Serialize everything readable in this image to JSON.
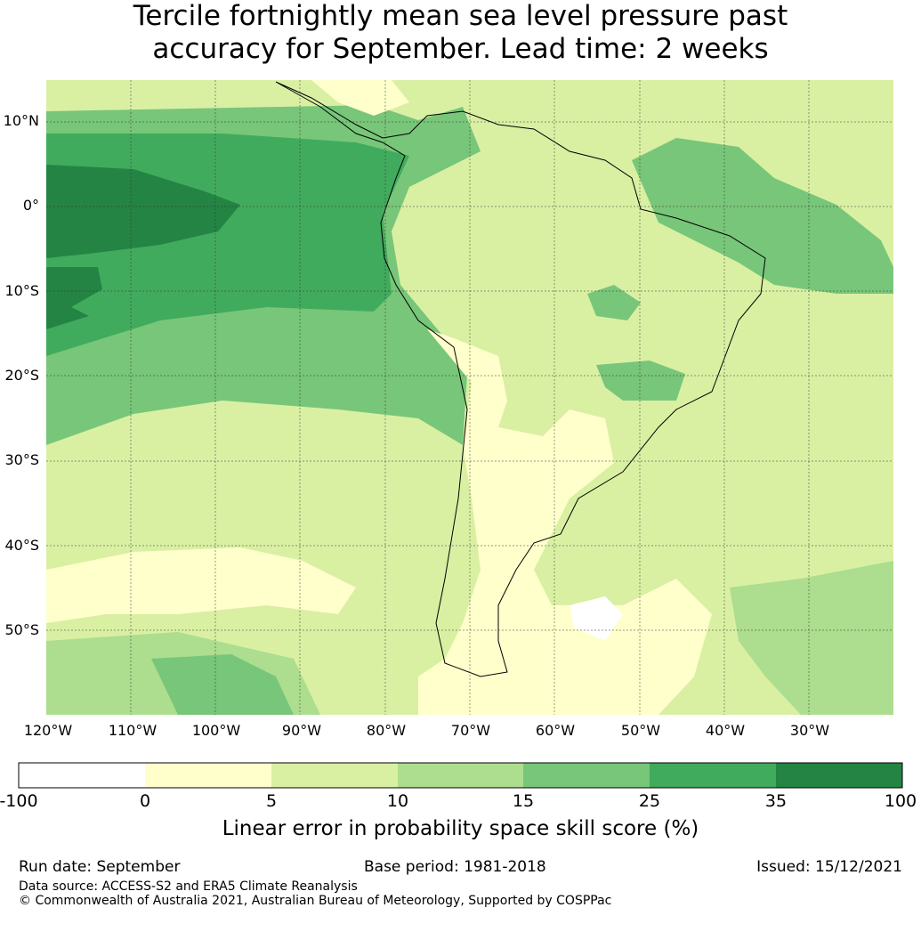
{
  "title": {
    "line1": "Tercile fortnightly mean sea level pressure past",
    "line2": "accuracy for September. Lead time: 2 weeks"
  },
  "map": {
    "lat_labels": [
      "10°N",
      "0°",
      "10°S",
      "20°S",
      "30°S",
      "40°S",
      "50°S"
    ],
    "lon_labels": [
      "120°W",
      "110°W",
      "100°W",
      "90°W",
      "80°W",
      "70°W",
      "60°W",
      "50°W",
      "40°W",
      "30°W"
    ]
  },
  "colorbar": {
    "ticks": [
      "-100",
      "0",
      "5",
      "10",
      "15",
      "25",
      "35",
      "100"
    ],
    "colors": [
      "#ffffff",
      "#ffffcc",
      "#d9f0a3",
      "#addd8e",
      "#78c679",
      "#41ab5d",
      "#238443"
    ],
    "label": "Linear error in probability space skill score (%)"
  },
  "footer": {
    "run_date": "Run date: September",
    "base_period": "Base period: 1981-2018",
    "issued": "Issued: 15/12/2021",
    "data_source": "Data source: ACCESS-S2 and ERA5 Climate Reanalysis",
    "copyright": "© Commonwealth of Australia 2021, Australian Bureau of Meteorology, Supported by COSPPac"
  }
}
